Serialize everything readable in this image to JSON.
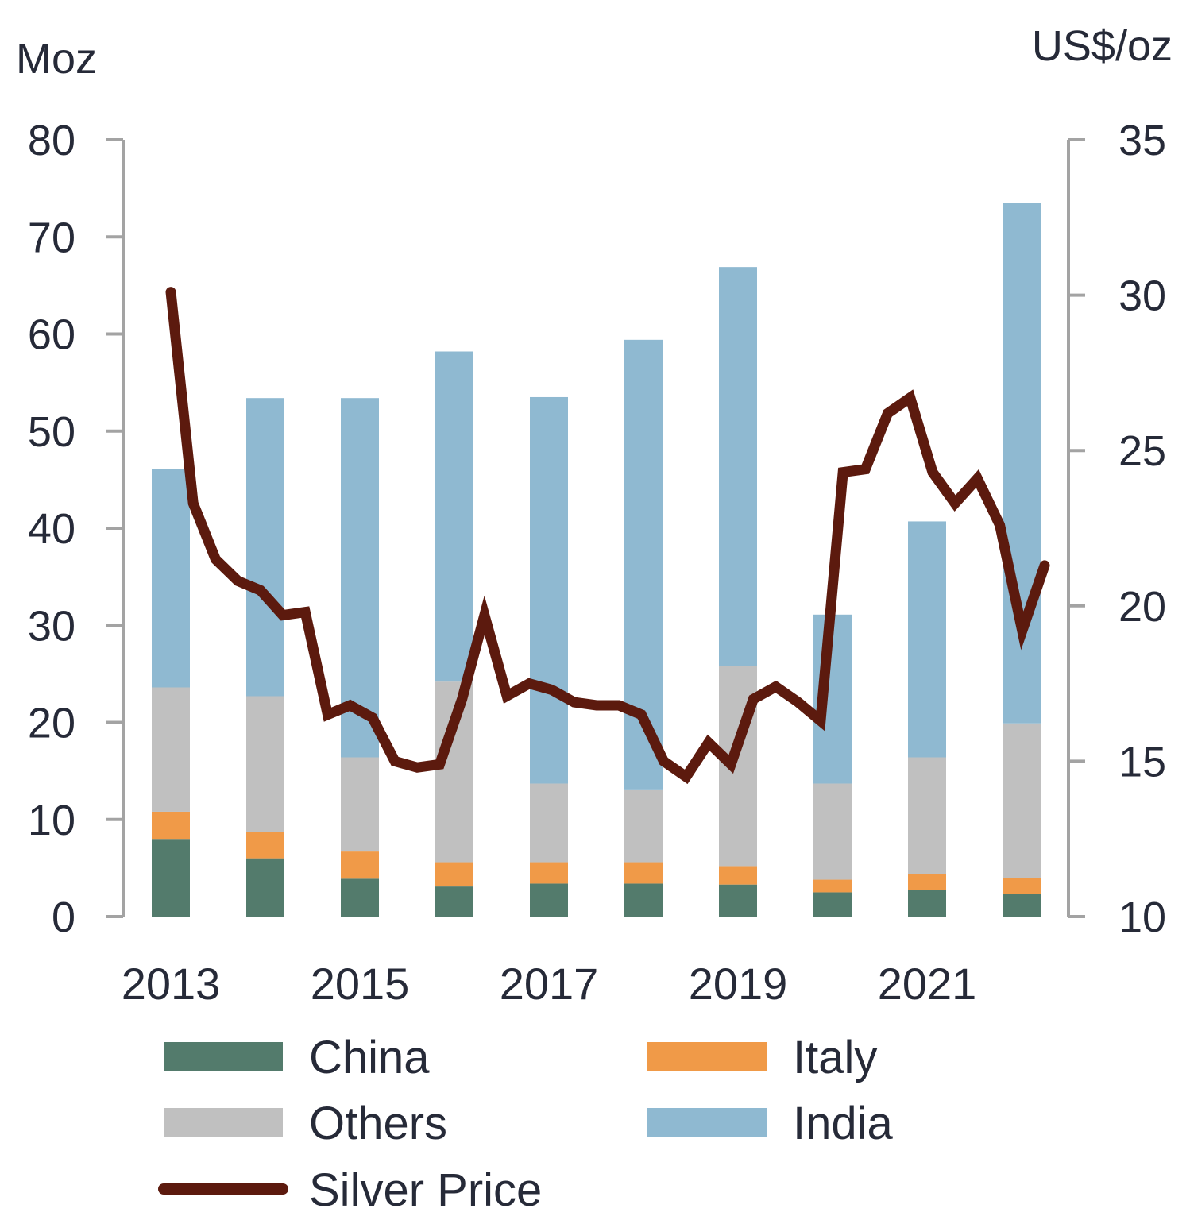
{
  "chart_data": {
    "type": "bar",
    "stacked": true,
    "left_axis": {
      "unit": "Moz",
      "ylim": [
        0,
        80
      ],
      "ticks": [
        0,
        10,
        20,
        30,
        40,
        50,
        60,
        70,
        80
      ]
    },
    "right_axis": {
      "unit": "US$/oz",
      "ylim": [
        10,
        35
      ],
      "ticks": [
        10,
        15,
        20,
        25,
        30,
        35
      ]
    },
    "categories": [
      "2013",
      "2014",
      "2015",
      "2016",
      "2017",
      "2018",
      "2019",
      "2020",
      "2021",
      "2022"
    ],
    "x_tick_labels": [
      "2013",
      "2015",
      "2017",
      "2019",
      "2021"
    ],
    "series": [
      {
        "name": "China",
        "color": "#537b6c",
        "values": [
          8.0,
          6.0,
          3.9,
          3.1,
          3.4,
          3.4,
          3.3,
          2.5,
          2.7,
          2.3
        ]
      },
      {
        "name": "Italy",
        "color": "#f09a48",
        "values": [
          2.8,
          2.7,
          2.8,
          2.5,
          2.2,
          2.2,
          1.9,
          1.3,
          1.7,
          1.7
        ]
      },
      {
        "name": "Others",
        "color": "#c0c0c0",
        "values": [
          12.8,
          14.0,
          9.7,
          18.6,
          8.1,
          7.5,
          20.6,
          9.9,
          12.0,
          15.9
        ]
      },
      {
        "name": "India",
        "color": "#8fb9d1",
        "values": [
          22.5,
          30.7,
          37.0,
          34.0,
          39.8,
          46.3,
          41.1,
          17.4,
          24.3,
          53.6
        ]
      }
    ],
    "line": {
      "name": "Silver Price",
      "color": "#5c1a0e",
      "axis": "right",
      "values": [
        30.1,
        23.3,
        21.5,
        20.8,
        20.5,
        19.7,
        19.8,
        16.5,
        16.8,
        16.4,
        15.0,
        14.8,
        14.9,
        17.0,
        19.7,
        17.1,
        17.5,
        17.3,
        16.9,
        16.8,
        16.8,
        16.5,
        15.0,
        14.5,
        15.6,
        14.9,
        17.0,
        17.4,
        16.9,
        16.3,
        24.3,
        24.4,
        26.2,
        26.7,
        24.3,
        23.3,
        24.1,
        22.6,
        19.2,
        21.3
      ]
    },
    "legend": {
      "placement": "bottom",
      "items": [
        "China",
        "Italy",
        "Others",
        "India",
        "Silver Price"
      ]
    },
    "grid": false
  }
}
